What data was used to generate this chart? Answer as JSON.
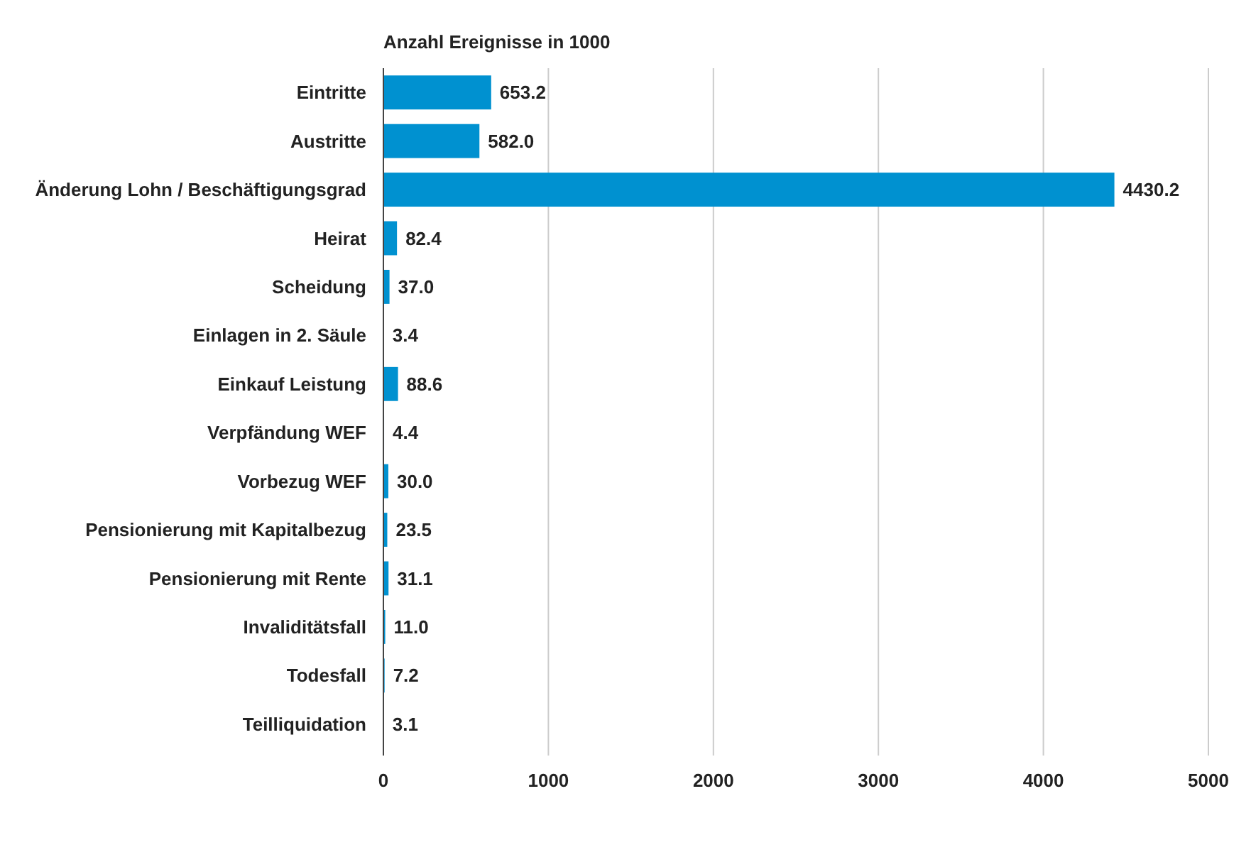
{
  "chart_data": {
    "type": "bar",
    "orientation": "horizontal",
    "title": "Anzahl Ereignisse in 1000",
    "categories": [
      "Eintritte",
      "Austritte",
      "Änderung Lohn / Beschäftigungsgrad",
      "Heirat",
      "Scheidung",
      "Einlagen in 2. Säule",
      "Einkauf Leistung",
      "Verpfändung WEF",
      "Vorbezug WEF",
      "Pensionierung mit Kapitalbezug",
      "Pensionierung mit Rente",
      "Invaliditätsfall",
      "Todesfall",
      "Teilliquidation"
    ],
    "values": [
      653.2,
      582.0,
      4430.2,
      82.4,
      37.0,
      3.4,
      88.6,
      4.4,
      30.0,
      23.5,
      31.1,
      11.0,
      7.2,
      3.1
    ],
    "value_labels": [
      "653.2",
      "582.0",
      "4430.2",
      "82.4",
      "37.0",
      "3.4",
      "88.6",
      "4.4",
      "30.0",
      "23.5",
      "31.1",
      "11.0",
      "7.2",
      "3.1"
    ],
    "color": "#0091d0",
    "xlim": [
      0,
      5000
    ],
    "xticks": [
      0,
      1000,
      2000,
      3000,
      4000,
      5000
    ],
    "grid": "x"
  }
}
